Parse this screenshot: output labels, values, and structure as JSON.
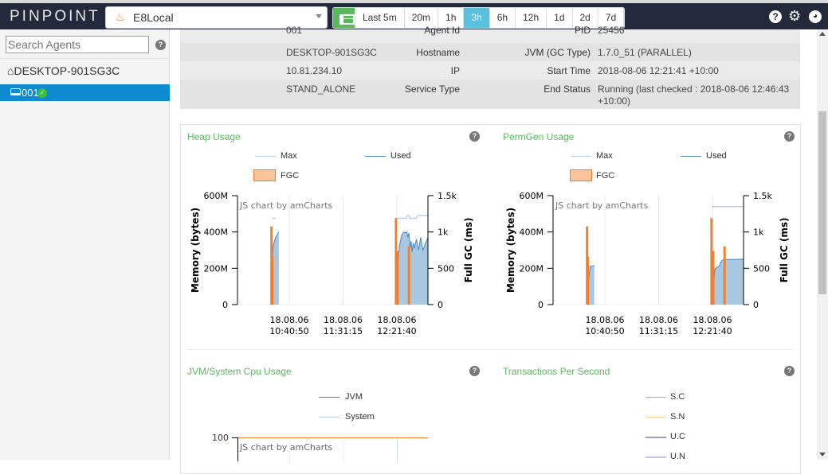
{
  "header": {
    "logo": "PINPOINT",
    "app_name": "E8Local",
    "app_icon": "java-icon",
    "time_buttons": [
      "Last 5m",
      "20m",
      "1h",
      "3h",
      "6h",
      "12h",
      "1d",
      "2d",
      "7d"
    ],
    "active_time": "3h",
    "icons": [
      "help-icon",
      "gear-icon",
      "github-icon"
    ]
  },
  "sidebar": {
    "search_placeholder": "Search Agents",
    "host": "DESKTOP-901SG3C",
    "agent": "001",
    "agent_status": "running",
    "selected_color": "#0e8ad0"
  },
  "info": {
    "left": [
      {
        "label": "Agent Id",
        "value": "001"
      },
      {
        "label": "Hostname",
        "value": "DESKTOP-901SG3C"
      },
      {
        "label": "IP",
        "value": "10.81.234.10"
      },
      {
        "label": "Service Type",
        "value": "STAND_ALONE"
      }
    ],
    "right": [
      {
        "label": "PID",
        "value": "25456"
      },
      {
        "label": "JVM (GC Type)",
        "value": "1.7.0_51 (PARALLEL)"
      },
      {
        "label": "Start Time",
        "value": "2018-08-06 12:21:41 +10:00"
      },
      {
        "label": "End Status",
        "value": "Running (last checked : 2018-08-06 12:46:43",
        "value2": "+10:00)"
      }
    ]
  },
  "charts": {
    "watermark": "JS chart by amCharts",
    "legend": {
      "max": "Max",
      "used": "Used",
      "fgc": "FGC"
    }
  },
  "chart_data": [
    {
      "type": "area",
      "title": "Heap Usage",
      "ylabel": "Memory (bytes)",
      "y2label": "Full GC (ms)",
      "ylim": [
        0,
        600
      ],
      "yticks": [
        "0",
        "200M",
        "400M",
        "600M"
      ],
      "y2lim": [
        0,
        1500
      ],
      "y2ticks": [
        "0",
        "500",
        "1k",
        "1.5k"
      ],
      "xlim": [
        "09:52:17",
        "12:50:48"
      ],
      "xticks": [
        {
          "time": "10:40:50",
          "date": "18.08.06",
          "label": "10:40:50"
        },
        {
          "time": "11:31:15",
          "date": "18.08.06",
          "label": "11:31:15"
        },
        {
          "time": "12:21:40",
          "date": "18.08.06",
          "label": "12:21:40"
        }
      ],
      "series": [
        {
          "name": "Max",
          "color": "#b8cfe8",
          "segments": [
            [
              [
                "10:24:30",
                475
              ],
              [
                "10:28:00",
                475
              ]
            ],
            [
              [
                "12:21:00",
                475
              ],
              [
                "12:30:00",
                475
              ],
              [
                "12:31:00",
                490
              ],
              [
                "12:33:00",
                490
              ],
              [
                "12:34:00",
                475
              ],
              [
                "12:40:00",
                475
              ],
              [
                "12:41:00",
                490
              ],
              [
                "12:50:48",
                490
              ]
            ]
          ]
        },
        {
          "name": "Used",
          "color": "#4a86c0",
          "fill": "#a8c8e2",
          "segments": [
            [
              [
                "10:24:50",
                260
              ],
              [
                "10:26:00",
                330
              ],
              [
                "10:28:00",
                370
              ],
              [
                "10:31:00",
                400
              ]
            ],
            [
              [
                "12:22:30",
                220
              ],
              [
                "12:24:00",
                320
              ],
              [
                "12:26:00",
                380
              ],
              [
                "12:28:00",
                400
              ],
              [
                "12:30:00",
                395
              ],
              [
                "12:31:00",
                400
              ],
              [
                "12:32:00",
                370
              ],
              [
                "12:33:00",
                395
              ],
              [
                "12:34:00",
                310
              ],
              [
                "12:35:00",
                350
              ],
              [
                "12:36:00",
                290
              ],
              [
                "12:37:00",
                340
              ],
              [
                "12:38:00",
                310
              ],
              [
                "12:40:00",
                360
              ],
              [
                "12:42:00",
                300
              ],
              [
                "12:44:00",
                370
              ],
              [
                "12:46:00",
                300
              ],
              [
                "12:48:00",
                330
              ],
              [
                "12:50:48",
                370
              ]
            ]
          ]
        },
        {
          "name": "FGC",
          "color": "#f07f2e",
          "axis": "right",
          "bars": [
            [
              "10:24:10",
              1075
            ],
            [
              "10:24:50",
              660
            ],
            [
              "12:20:50",
              1190
            ],
            [
              "12:22:23",
              740
            ],
            [
              "12:33:00",
              800
            ]
          ]
        }
      ]
    },
    {
      "type": "area",
      "title": "PermGen Usage",
      "ylabel": "Memory (bytes)",
      "y2label": "Full GC (ms)",
      "ylim": [
        0,
        600
      ],
      "yticks": [
        "0",
        "200M",
        "400M",
        "600M"
      ],
      "y2lim": [
        0,
        1500
      ],
      "y2ticks": [
        "0",
        "500",
        "1k",
        "1.5k"
      ],
      "xlim": [
        "09:52:17",
        "12:50:48"
      ],
      "xticks": [
        {
          "time": "10:40:50",
          "date": "18.08.06",
          "label": "10:40:50"
        },
        {
          "time": "11:31:15",
          "date": "18.08.06",
          "label": "11:31:15"
        },
        {
          "time": "12:21:40",
          "date": "18.08.06",
          "label": "12:21:40"
        }
      ],
      "series": [
        {
          "name": "Max",
          "color": "#b8cfe8",
          "segments": [
            [
              [
                "12:21:00",
                540
              ],
              [
                "12:50:48",
                540
              ]
            ]
          ]
        },
        {
          "name": "Used",
          "color": "#4a86c0",
          "fill": "#a8c8e2",
          "segments": [
            [
              [
                "10:25:30",
                130
              ],
              [
                "10:27:00",
                210
              ],
              [
                "10:31:00",
                215
              ]
            ],
            [
              [
                "12:23:00",
                130
              ],
              [
                "12:24:00",
                195
              ],
              [
                "12:26:00",
                205
              ],
              [
                "12:28:00",
                212
              ],
              [
                "12:30:00",
                240
              ],
              [
                "12:32:00",
                248
              ],
              [
                "12:50:48",
                250
              ]
            ]
          ]
        },
        {
          "name": "FGC",
          "color": "#f07f2e",
          "axis": "right",
          "bars": [
            [
              "10:24:10",
              1075
            ],
            [
              "10:24:50",
              660
            ],
            [
              "12:20:50",
              1190
            ],
            [
              "12:22:23",
              740
            ],
            [
              "12:33:00",
              800
            ]
          ]
        }
      ]
    },
    {
      "type": "line",
      "title": "JVM/System Cpu Usage",
      "legend": [
        {
          "name": "JVM",
          "color": "#4a7fb5"
        },
        {
          "name": "System",
          "color": "#b8cfe8"
        }
      ],
      "yticks": [
        "100"
      ],
      "ylim": [
        0,
        100
      ]
    },
    {
      "type": "line",
      "title": "Transactions Per Second",
      "legend": [
        {
          "name": "S.C",
          "color": "#e0a040"
        },
        {
          "name": "S.N",
          "color": "#ffd08a"
        },
        {
          "name": "U.C",
          "color": "#9aa3c0"
        },
        {
          "name": "U.N",
          "color": "#c8bff0"
        }
      ]
    }
  ]
}
